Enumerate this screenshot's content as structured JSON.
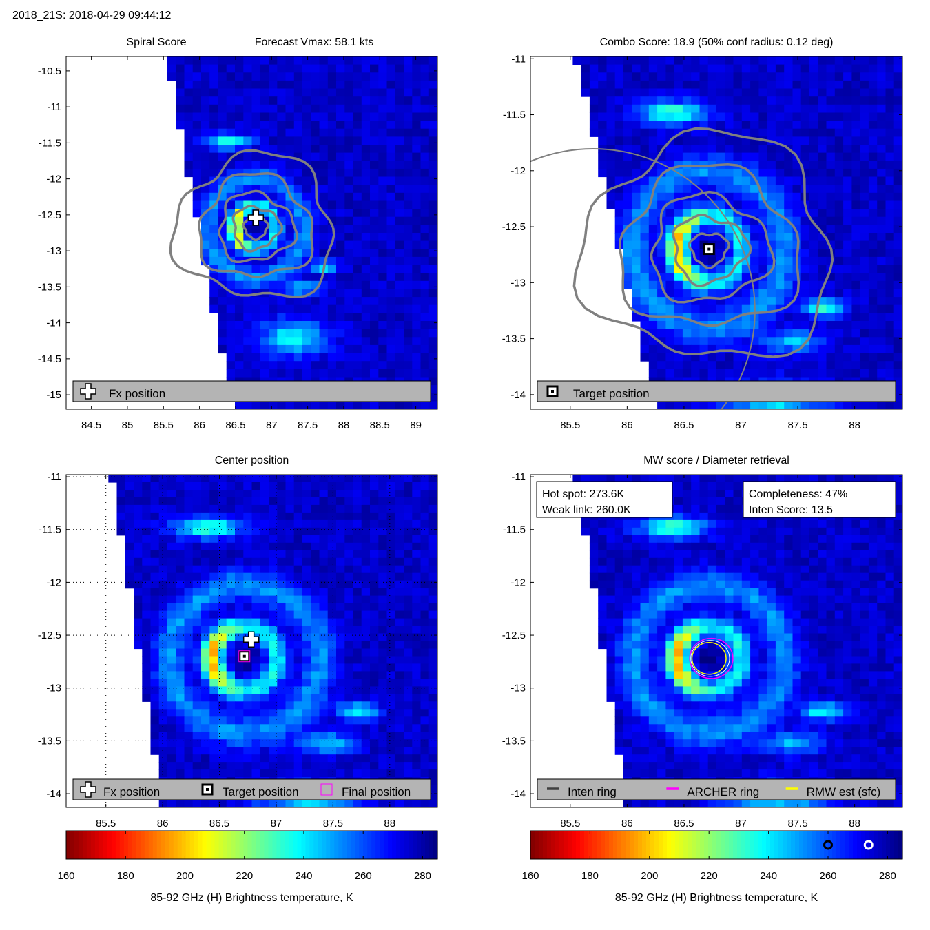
{
  "page_title": "2018_21S: 2018-04-29 09:44:12",
  "colors": {
    "contour": "#808080",
    "legend_bg": "#b4b4b4",
    "archer_ring": "#ff00ff",
    "rmw_ring": "#ffff00",
    "inten_ring": "#404040",
    "final_marker": "#ff00ff"
  },
  "chart_data": [
    {
      "type": "heatmap",
      "title_left": "Spiral Score",
      "title_right": "Forecast Vmax: 58.1 kts",
      "xlim": [
        84.15,
        89.3
      ],
      "ylim": [
        -15.2,
        -10.3
      ],
      "xticks": [
        84.5,
        85,
        85.5,
        86,
        86.5,
        87,
        87.5,
        88,
        88.5,
        89
      ],
      "yticks": [
        -10.5,
        -11,
        -11.5,
        -12,
        -12.5,
        -13,
        -13.5,
        -14,
        -14.5,
        -15
      ],
      "swath_edge_lon_top": 85.55,
      "swath_edge_lon_bottom": 86.45,
      "eye": {
        "lon": 86.78,
        "lat": -12.68
      },
      "markers": [
        {
          "type": "fx-cross",
          "lon": 86.78,
          "lat": -12.54
        }
      ],
      "legend": [
        {
          "icon": "fx-cross",
          "label": "Fx position"
        }
      ],
      "contours_present": true
    },
    {
      "type": "heatmap",
      "title": "Combo Score: 18.9  (50% conf radius: 0.12 deg)",
      "xlim": [
        85.15,
        88.42
      ],
      "ylim": [
        -14.13,
        -10.98
      ],
      "xticks": [
        85.5,
        86,
        86.5,
        87,
        87.5,
        88
      ],
      "yticks": [
        -11,
        -11.5,
        -12,
        -12.5,
        -13,
        -13.5,
        -14
      ],
      "swath_edge_lon_top": 85.55,
      "swath_edge_lon_bottom": 86.25,
      "eye": {
        "lon": 86.72,
        "lat": -12.7
      },
      "markers": [
        {
          "type": "target-square",
          "lon": 86.72,
          "lat": -12.7
        }
      ],
      "legend": [
        {
          "icon": "target-square",
          "label": "Target position"
        }
      ],
      "contours_present": true
    },
    {
      "type": "heatmap",
      "title": "Center position",
      "xlim": [
        85.15,
        88.42
      ],
      "ylim": [
        -14.13,
        -10.98
      ],
      "xticks": [
        85.5,
        86,
        86.5,
        87,
        87.5,
        88
      ],
      "yticks": [
        -11,
        -11.5,
        -12,
        -12.5,
        -13,
        -13.5,
        -14
      ],
      "swath_edge_lon_top": 85.55,
      "swath_edge_lon_bottom": 86.0,
      "grid": "dotted",
      "eye": {
        "lon": 86.72,
        "lat": -12.72
      },
      "markers": [
        {
          "type": "fx-cross",
          "lon": 86.78,
          "lat": -12.54
        },
        {
          "type": "target-square",
          "lon": 86.72,
          "lat": -12.7
        },
        {
          "type": "final-square",
          "lon": 86.72,
          "lat": -12.7
        }
      ],
      "legend": [
        {
          "icon": "fx-cross",
          "label": "Fx position"
        },
        {
          "icon": "target-square",
          "label": "Target position"
        },
        {
          "icon": "final-square",
          "label": "Final position"
        }
      ]
    },
    {
      "type": "heatmap",
      "title": "MW score / Diameter retrieval",
      "xlim": [
        85.15,
        88.42
      ],
      "ylim": [
        -14.13,
        -10.98
      ],
      "xticks": [
        85.5,
        86,
        86.5,
        87,
        87.5,
        88
      ],
      "yticks": [
        -11,
        -11.5,
        -12,
        -12.5,
        -13,
        -13.5,
        -14
      ],
      "swath_edge_lon_top": 85.55,
      "swath_edge_lon_bottom": 86.0,
      "eye": {
        "lon": 86.72,
        "lat": -12.72
      },
      "info_left": [
        "Hot spot: 273.6K",
        "Weak link: 260.0K"
      ],
      "info_right": [
        "Completeness: 47%",
        "Inten Score: 13.5"
      ],
      "rings": [
        {
          "name": "ARCHER ring",
          "lon": 86.74,
          "lat": -12.72,
          "radius_deg": 0.19
        },
        {
          "name": "RMW est (sfc)",
          "lon": 86.72,
          "lat": -12.72,
          "radius_deg": 0.15
        }
      ],
      "legend": [
        {
          "icon": "inten-line",
          "label": "Inten ring"
        },
        {
          "icon": "archer-line",
          "label": "ARCHER ring"
        },
        {
          "icon": "rmw-line",
          "label": "RMW est (sfc)"
        }
      ]
    }
  ],
  "colorbar": {
    "label": "85-92 GHz (H) Brightness temperature, K",
    "range": [
      160,
      285
    ],
    "ticks": [
      160,
      180,
      200,
      220,
      240,
      260,
      280
    ],
    "markers_right": [
      {
        "value": 260.0,
        "style": "black-ring"
      },
      {
        "value": 273.6,
        "style": "white-ring"
      }
    ]
  }
}
